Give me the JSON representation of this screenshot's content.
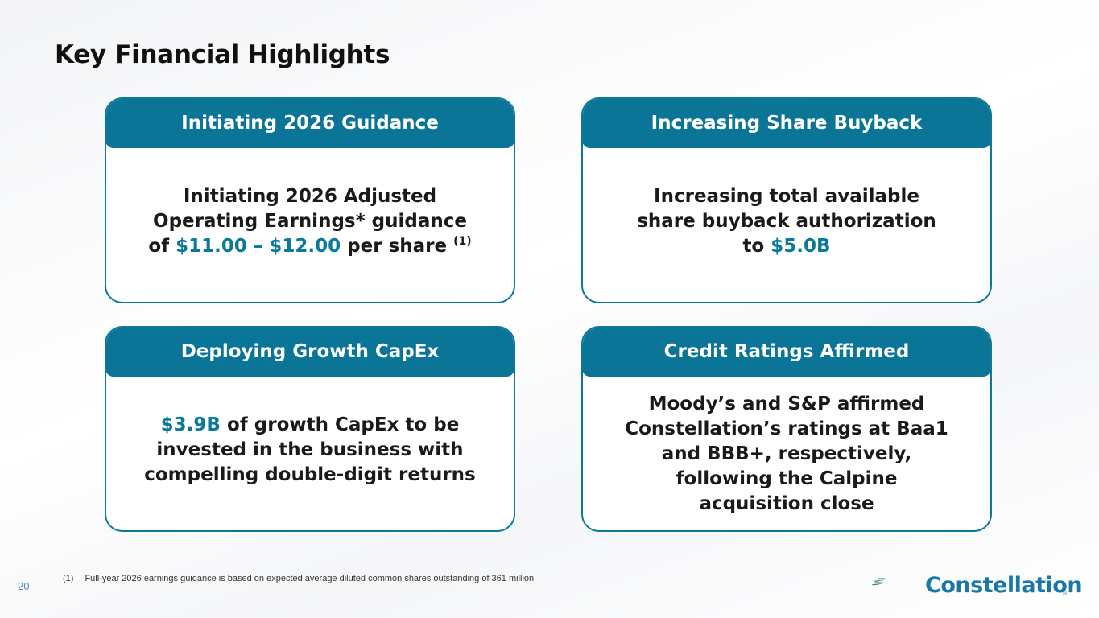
{
  "page": {
    "title": "Key Financial Highlights",
    "page_number": "20"
  },
  "cards": [
    {
      "header": "Initiating 2026 Guidance",
      "body_line1": "Initiating 2026 Adjusted",
      "body_line2": "Operating Earnings* guidance",
      "body_line3_pre": "of ",
      "body_highlight": "$11.00 – $12.00",
      "body_line3_post": " per share ",
      "body_sup": "(1)"
    },
    {
      "header": "Increasing Share Buyback",
      "body_line1": "Increasing total available",
      "body_line2": "share buyback authorization",
      "body_line3_pre": "to ",
      "body_highlight": "$5.0B"
    },
    {
      "header": "Deploying Growth CapEx",
      "body_highlight": "$3.9B",
      "body_line1_post": " of growth CapEx to be",
      "body_line2": "invested in the business with",
      "body_line3": "compelling double-digit returns"
    },
    {
      "header": "Credit Ratings Affirmed",
      "body_line1": "Moody’s and S&P affirmed",
      "body_line2": "Constellation’s ratings at Baa1",
      "body_line3": "and BBB+, respectively,",
      "body_line4": "following the Calpine",
      "body_line5": "acquisition close"
    }
  ],
  "footnote": {
    "number": "(1)",
    "text": "Full-year 2026 earnings guidance is based on expected average diluted common shares outstanding of 361 million"
  },
  "logo": {
    "name": "Constellation",
    "reg": "®"
  },
  "colors": {
    "accent": "#0b7a9a",
    "header_bg": "#0a7597",
    "logo_blue": "#1a78a8"
  }
}
